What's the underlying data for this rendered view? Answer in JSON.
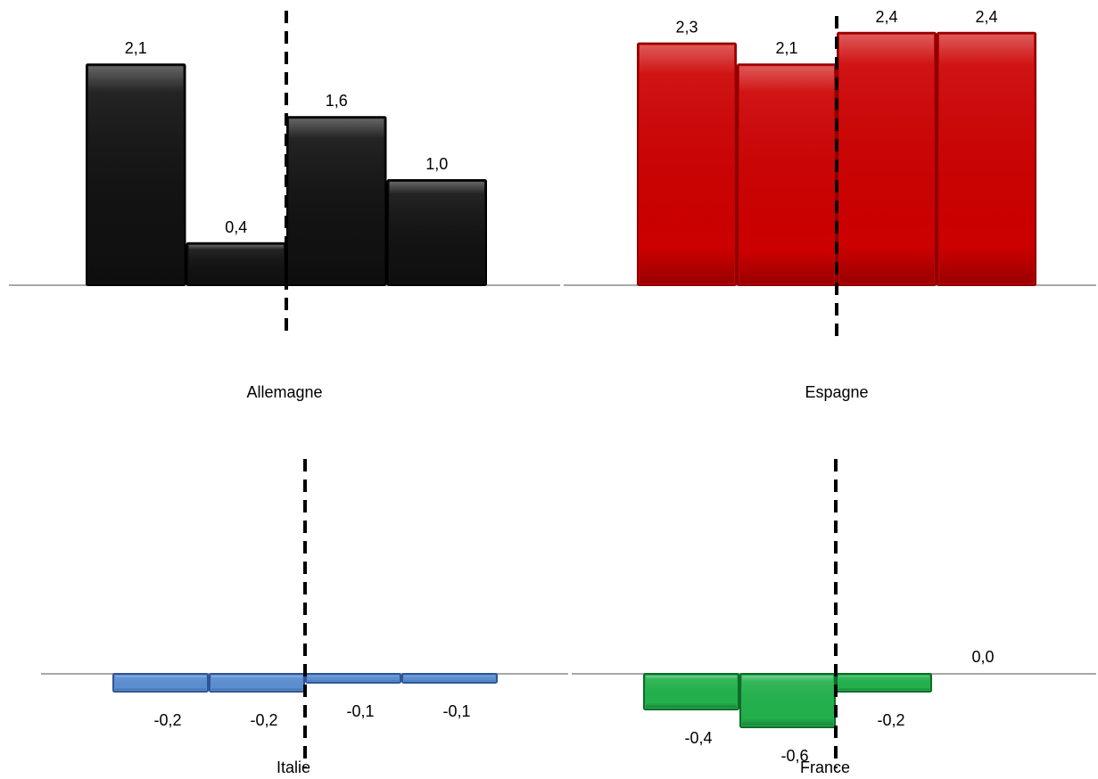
{
  "chart_data": [
    {
      "type": "bar",
      "name": "Allemagne",
      "values": [
        2.1,
        0.4,
        1.6,
        1.0
      ],
      "value_labels": [
        "2,1",
        "0,4",
        "1,6",
        "1,0"
      ],
      "color": "#111111",
      "stroke": "#000000",
      "divider_after_bar": 2
    },
    {
      "type": "bar",
      "name": "Espagne",
      "values": [
        2.3,
        2.1,
        2.4,
        2.4
      ],
      "value_labels": [
        "2,3",
        "2,1",
        "2,4",
        "2,4"
      ],
      "color": "#cc0000",
      "stroke": "#8b0000",
      "divider_after_bar": 2
    },
    {
      "type": "bar",
      "name": "Italie",
      "values": [
        -0.2,
        -0.2,
        -0.1,
        -0.1
      ],
      "value_labels": [
        "-0,2",
        "-0,2",
        "-0,1",
        "-0,1"
      ],
      "color": "#5b8fd1",
      "stroke": "#2f5597",
      "divider_after_bar": 2
    },
    {
      "type": "bar",
      "name": "France",
      "values": [
        -0.4,
        -0.6,
        -0.2,
        0.0
      ],
      "value_labels": [
        "-0,4",
        "-0,6",
        "-0,2",
        "0,0"
      ],
      "color": "#22b14c",
      "stroke": "#0f6b2a",
      "divider_after_bar": 2
    }
  ]
}
